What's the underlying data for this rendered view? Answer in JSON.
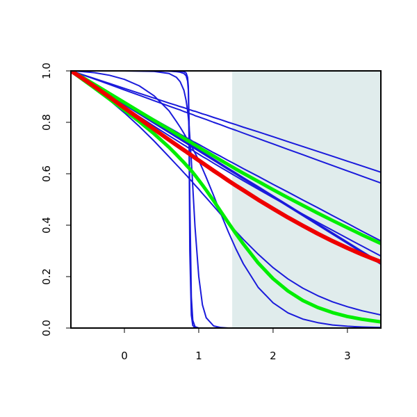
{
  "chart_data": {
    "type": "line",
    "title": "",
    "xlabel": "",
    "ylabel": "",
    "xlim": [
      -0.72,
      3.45
    ],
    "ylim": [
      0,
      1
    ],
    "x_ticks": [
      0,
      1,
      2,
      3
    ],
    "x_tick_labels": [
      "0",
      "1",
      "2",
      "3"
    ],
    "y_ticks": [
      0,
      0.2,
      0.4,
      0.6,
      0.8,
      1.0
    ],
    "y_tick_labels": [
      "0.0",
      "0.2",
      "0.4",
      "0.6",
      "0.8",
      "1.0"
    ],
    "grid": false,
    "shaded_region": {
      "x_start": 1.45,
      "x_end": 3.45,
      "color": "#e0ecec"
    },
    "colors": {
      "blue": "#1a1adb",
      "green": "#00ee00",
      "red": "#ee0000",
      "axis": "#000000"
    },
    "x_samples": [
      -0.72,
      -0.6,
      -0.4,
      -0.2,
      0.0,
      0.2,
      0.4,
      0.6,
      0.7,
      0.75,
      0.8,
      0.83,
      0.85,
      0.86,
      0.87,
      0.88,
      0.9,
      0.92,
      0.95,
      1.0,
      1.05,
      1.1,
      1.2,
      1.3,
      1.4,
      1.5,
      1.6,
      1.8,
      2.0,
      2.2,
      2.4,
      2.6,
      2.8,
      3.0,
      3.2,
      3.45
    ],
    "series": [
      {
        "color": "blue",
        "width": 2,
        "y": [
          1,
          0.98,
          0.946,
          0.912,
          0.878,
          0.845,
          0.812,
          0.779,
          0.763,
          0.754,
          0.746,
          0.741,
          0.738,
          0.736,
          0.734,
          0.733,
          0.73,
          0.726,
          0.722,
          0.714,
          0.706,
          0.698,
          0.682,
          0.667,
          0.651,
          0.636,
          0.62,
          0.59,
          0.559,
          0.529,
          0.498,
          0.468,
          0.437,
          0.407,
          0.376,
          0.339
        ]
      },
      {
        "color": "blue",
        "width": 2,
        "y": [
          1,
          0.989,
          0.97,
          0.951,
          0.932,
          0.913,
          0.894,
          0.875,
          0.866,
          0.861,
          0.857,
          0.854,
          0.852,
          0.851,
          0.85,
          0.849,
          0.847,
          0.845,
          0.843,
          0.838,
          0.833,
          0.829,
          0.819,
          0.81,
          0.8,
          0.791,
          0.781,
          0.763,
          0.744,
          0.725,
          0.706,
          0.687,
          0.668,
          0.649,
          0.63,
          0.606
        ]
      },
      {
        "color": "blue",
        "width": 2,
        "y": [
          1,
          0.988,
          0.968,
          0.947,
          0.926,
          0.905,
          0.884,
          0.863,
          0.853,
          0.848,
          0.842,
          0.839,
          0.837,
          0.836,
          0.835,
          0.834,
          0.832,
          0.83,
          0.826,
          0.821,
          0.816,
          0.811,
          0.8,
          0.79,
          0.779,
          0.769,
          0.758,
          0.737,
          0.716,
          0.695,
          0.674,
          0.653,
          0.632,
          0.611,
          0.59,
          0.564
        ]
      },
      {
        "color": "blue",
        "width": 2,
        "y": [
          1,
          0.978,
          0.942,
          0.905,
          0.868,
          0.832,
          0.796,
          0.76,
          0.742,
          0.733,
          0.724,
          0.719,
          0.715,
          0.713,
          0.711,
          0.71,
          0.706,
          0.703,
          0.697,
          0.688,
          0.679,
          0.67,
          0.652,
          0.634,
          0.616,
          0.598,
          0.58,
          0.545,
          0.509,
          0.473,
          0.437,
          0.401,
          0.365,
          0.329,
          0.293,
          0.248
        ]
      },
      {
        "color": "blue",
        "width": 2,
        "y": [
          1,
          0.979,
          0.943,
          0.907,
          0.872,
          0.836,
          0.8,
          0.764,
          0.746,
          0.737,
          0.728,
          0.723,
          0.719,
          0.718,
          0.716,
          0.714,
          0.71,
          0.707,
          0.702,
          0.693,
          0.684,
          0.675,
          0.657,
          0.639,
          0.621,
          0.603,
          0.585,
          0.55,
          0.514,
          0.478,
          0.442,
          0.406,
          0.37,
          0.334,
          0.298,
          0.254
        ]
      },
      {
        "color": "blue",
        "width": 2,
        "y": [
          1,
          0.976,
          0.936,
          0.897,
          0.859,
          0.822,
          0.785,
          0.748,
          0.73,
          0.721,
          0.712,
          0.707,
          0.703,
          0.701,
          0.699,
          0.698,
          0.694,
          0.691,
          0.685,
          0.676,
          0.667,
          0.659,
          0.641,
          0.624,
          0.607,
          0.59,
          0.573,
          0.54,
          0.507,
          0.475,
          0.443,
          0.411,
          0.38,
          0.349,
          0.318,
          0.28
        ]
      },
      {
        "color": "blue",
        "width": 2,
        "y": [
          1,
          0.975,
          0.932,
          0.886,
          0.837,
          0.784,
          0.727,
          0.666,
          0.635,
          0.62,
          0.604,
          0.595,
          0.589,
          0.585,
          0.582,
          0.579,
          0.573,
          0.566,
          0.556,
          0.54,
          0.523,
          0.507,
          0.474,
          0.441,
          0.408,
          0.376,
          0.345,
          0.287,
          0.235,
          0.191,
          0.155,
          0.126,
          0.102,
          0.083,
          0.067,
          0.051
        ]
      },
      {
        "color": "blue",
        "width": 2,
        "y": [
          1,
          0.998,
          0.993,
          0.983,
          0.967,
          0.942,
          0.903,
          0.845,
          0.803,
          0.781,
          0.757,
          0.742,
          0.733,
          0.728,
          0.723,
          0.718,
          0.708,
          0.697,
          0.681,
          0.652,
          0.62,
          0.586,
          0.515,
          0.443,
          0.373,
          0.308,
          0.25,
          0.158,
          0.098,
          0.059,
          0.035,
          0.021,
          0.012,
          0.007,
          0.004,
          0.002
        ]
      },
      {
        "color": "blue",
        "width": 2,
        "y": [
          1,
          1,
          1,
          1,
          1,
          0.999,
          0.998,
          0.99,
          0.975,
          0.958,
          0.925,
          0.885,
          0.845,
          0.818,
          0.785,
          0.745,
          0.651,
          0.548,
          0.393,
          0.2,
          0.09,
          0.04,
          0.008,
          0.002,
          0,
          0,
          0,
          0,
          0,
          0,
          0,
          0,
          0,
          0,
          0,
          0
        ]
      },
      {
        "color": "blue",
        "width": 2,
        "y": [
          1,
          1,
          1,
          1,
          1,
          1,
          1,
          0.999,
          0.997,
          0.995,
          0.99,
          0.981,
          0.96,
          0.925,
          0.7,
          0.3,
          0.05,
          0.01,
          0.001,
          0,
          0,
          0,
          0,
          0,
          0,
          0,
          0,
          0,
          0,
          0,
          0,
          0,
          0,
          0,
          0,
          0
        ]
      },
      {
        "color": "blue",
        "width": 2,
        "y": [
          1,
          1,
          1,
          1,
          1,
          1,
          1,
          1,
          1,
          0.999,
          0.997,
          0.992,
          0.975,
          0.94,
          0.8,
          0.5,
          0.12,
          0.03,
          0.005,
          0,
          0,
          0,
          0,
          0,
          0,
          0,
          0,
          0,
          0,
          0,
          0,
          0,
          0,
          0,
          0,
          0
        ]
      },
      {
        "color": "green",
        "width": 5,
        "y": [
          1,
          0.981,
          0.947,
          0.912,
          0.877,
          0.842,
          0.807,
          0.773,
          0.755,
          0.747,
          0.738,
          0.733,
          0.729,
          0.728,
          0.726,
          0.724,
          0.721,
          0.717,
          0.712,
          0.703,
          0.694,
          0.686,
          0.669,
          0.652,
          0.635,
          0.618,
          0.602,
          0.57,
          0.538,
          0.507,
          0.477,
          0.447,
          0.418,
          0.39,
          0.362,
          0.329
        ]
      },
      {
        "color": "green",
        "width": 5,
        "y": [
          1,
          0.975,
          0.933,
          0.89,
          0.847,
          0.803,
          0.755,
          0.703,
          0.674,
          0.659,
          0.644,
          0.634,
          0.628,
          0.625,
          0.622,
          0.618,
          0.612,
          0.605,
          0.594,
          0.575,
          0.556,
          0.536,
          0.495,
          0.452,
          0.409,
          0.367,
          0.327,
          0.253,
          0.192,
          0.144,
          0.107,
          0.08,
          0.06,
          0.045,
          0.034,
          0.024
        ]
      },
      {
        "color": "red",
        "width": 6,
        "y": [
          1,
          0.978,
          0.939,
          0.898,
          0.856,
          0.815,
          0.773,
          0.732,
          0.712,
          0.702,
          0.692,
          0.686,
          0.682,
          0.68,
          0.678,
          0.676,
          0.672,
          0.668,
          0.662,
          0.652,
          0.642,
          0.632,
          0.612,
          0.593,
          0.573,
          0.554,
          0.536,
          0.499,
          0.464,
          0.43,
          0.398,
          0.367,
          0.338,
          0.311,
          0.286,
          0.257
        ]
      }
    ]
  }
}
